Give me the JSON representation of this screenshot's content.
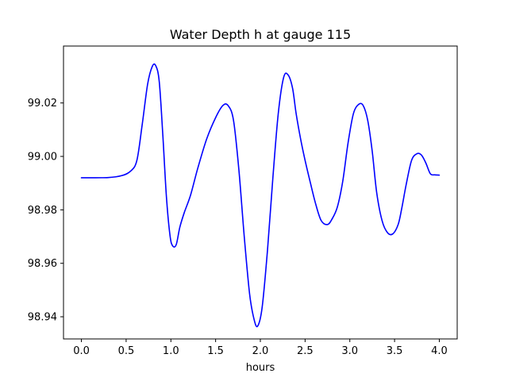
{
  "chart_data": {
    "type": "line",
    "title": "Water Depth h at gauge 115",
    "xlabel": "hours",
    "ylabel": "",
    "xlim": [
      -0.2,
      4.2
    ],
    "ylim": [
      98.9317,
      99.0413
    ],
    "xticks": [
      0.0,
      0.5,
      1.0,
      1.5,
      2.0,
      2.5,
      3.0,
      3.5,
      4.0
    ],
    "xtick_labels": [
      "0.0",
      "0.5",
      "1.0",
      "1.5",
      "2.0",
      "2.5",
      "3.0",
      "3.5",
      "4.0"
    ],
    "yticks": [
      98.94,
      98.96,
      98.98,
      99.0,
      99.02
    ],
    "ytick_labels": [
      "98.94",
      "98.96",
      "98.98",
      "99.00",
      "99.02"
    ],
    "grid": false,
    "legend": "none",
    "colors": {
      "line": "#0000ff",
      "axes": "#000000",
      "background": "#ffffff"
    },
    "series": [
      {
        "x": [
          0.0,
          0.3,
          0.45,
          0.55,
          0.62,
          0.68,
          0.74,
          0.79,
          0.83,
          0.87,
          0.91,
          0.95,
          0.99,
          1.02,
          1.06,
          1.1,
          1.15,
          1.22,
          1.3,
          1.4,
          1.5,
          1.58,
          1.64,
          1.7,
          1.76,
          1.82,
          1.88,
          1.93,
          1.97,
          2.02,
          2.08,
          2.14,
          2.2,
          2.26,
          2.31,
          2.36,
          2.4,
          2.45,
          2.5,
          2.56,
          2.62,
          2.68,
          2.75,
          2.8,
          2.86,
          2.92,
          2.98,
          3.04,
          3.1,
          3.15,
          3.2,
          3.25,
          3.3,
          3.36,
          3.42,
          3.48,
          3.54,
          3.58,
          3.63,
          3.69,
          3.75,
          3.8,
          3.85,
          3.9,
          3.95,
          4.0
        ],
        "y": [
          98.992,
          98.9921,
          98.9928,
          98.9945,
          98.9985,
          99.012,
          99.027,
          99.0335,
          99.034,
          99.028,
          99.008,
          98.985,
          98.9705,
          98.9665,
          98.967,
          98.9735,
          98.979,
          98.9855,
          98.9955,
          99.0065,
          99.0145,
          99.019,
          99.019,
          99.0135,
          98.995,
          98.97,
          98.9485,
          98.939,
          98.9365,
          98.9435,
          98.965,
          98.992,
          99.016,
          99.0295,
          99.0305,
          99.0255,
          99.016,
          99.0065,
          98.9985,
          98.99,
          98.982,
          98.976,
          98.9745,
          98.9765,
          98.981,
          98.9905,
          99.005,
          99.016,
          99.0195,
          99.019,
          99.0135,
          99.002,
          98.9865,
          98.976,
          98.9715,
          98.971,
          98.9745,
          98.9805,
          98.9895,
          98.9985,
          99.001,
          99.0005,
          98.9975,
          98.9935,
          98.9931,
          98.993
        ]
      }
    ]
  }
}
